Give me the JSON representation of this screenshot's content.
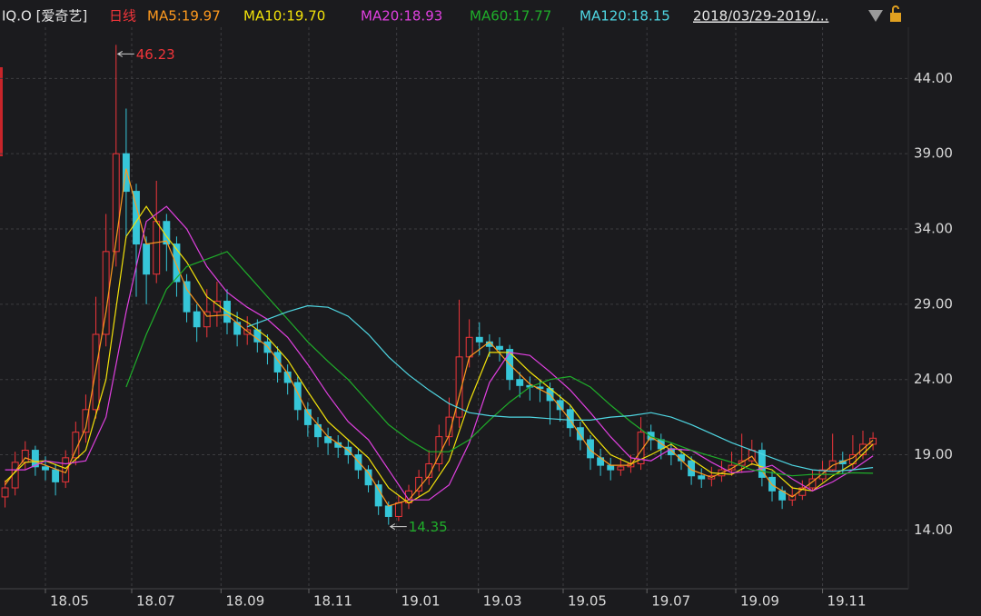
{
  "chart_data": {
    "type": "candlestick",
    "title": "IQ.O [爱奇艺]",
    "period": "日线",
    "date_range": "2018/03/29-2019/...",
    "up_color": "#f0353a",
    "down_color": "#36c6d8",
    "grid": true,
    "xlim": [
      -0.5,
      89.5
    ],
    "ylim": [
      10.1,
      47.4
    ],
    "yticks": [
      {
        "value": 14,
        "label": "14.00"
      },
      {
        "value": 19,
        "label": "19.00"
      },
      {
        "value": 24,
        "label": "24.00"
      },
      {
        "value": 29,
        "label": "29.00"
      },
      {
        "value": 34,
        "label": "34.00"
      },
      {
        "value": 39,
        "label": "39.00"
      },
      {
        "value": 44,
        "label": "44.00"
      }
    ],
    "xticks": [
      {
        "value": 4,
        "label": "18.05"
      },
      {
        "value": 12.55,
        "label": "18.07"
      },
      {
        "value": 21.4,
        "label": "18.09"
      },
      {
        "value": 30.1,
        "label": "18.11"
      },
      {
        "value": 38.8,
        "label": "19.01"
      },
      {
        "value": 46.9,
        "label": "19.03"
      },
      {
        "value": 55.3,
        "label": "19.05"
      },
      {
        "value": 63.6,
        "label": "19.07"
      },
      {
        "value": 72.4,
        "label": "19.09"
      },
      {
        "value": 81,
        "label": "19.11"
      }
    ],
    "open": [
      16.2,
      16.8,
      18.5,
      19.3,
      18.2,
      18.0,
      17.2,
      18.8,
      20.5,
      22.0,
      27.0,
      32.5,
      39.0,
      36.5,
      33.0,
      31.0,
      34.5,
      33.0,
      30.5,
      28.5,
      27.5,
      28.5,
      29.2,
      27.8,
      27.0,
      27.3,
      26.5,
      25.8,
      24.5,
      23.8,
      22.0,
      21.0,
      20.2,
      19.8,
      19.5,
      19.0,
      18.0,
      17.0,
      15.6,
      14.9,
      15.8,
      16.6,
      17.5,
      18.4,
      20.2,
      21.5,
      25.5,
      26.8,
      26.5,
      26.2,
      26.0,
      24.0,
      23.6,
      23.5,
      23.4,
      22.6,
      22.0,
      20.8,
      20.0,
      18.8,
      18.3,
      18.0,
      18.2,
      18.4,
      20.5,
      20.0,
      19.4,
      19.0,
      18.6,
      17.6,
      17.4,
      17.6,
      18.0,
      18.3,
      18.6,
      19.3,
      17.5,
      16.6,
      16.0,
      16.3,
      16.8,
      17.4,
      18.0,
      18.6,
      18.4,
      19.0,
      19.7
    ],
    "high": [
      17.3,
      19.2,
      19.9,
      19.6,
      18.9,
      18.4,
      19.3,
      21.2,
      23.0,
      29.5,
      35.0,
      46.23,
      42.0,
      37.0,
      33.5,
      37.2,
      35.0,
      33.5,
      31.0,
      29.0,
      30.0,
      30.5,
      30.0,
      28.5,
      28.2,
      28.0,
      27.0,
      26.2,
      25.0,
      24.2,
      22.5,
      21.5,
      20.8,
      20.3,
      20.0,
      19.4,
      18.3,
      17.3,
      15.9,
      16.3,
      17.0,
      18.0,
      19.3,
      21.0,
      22.8,
      29.3,
      28.0,
      27.8,
      27.0,
      26.8,
      26.3,
      24.5,
      24.2,
      24.0,
      23.8,
      23.0,
      22.3,
      21.2,
      20.3,
      19.4,
      18.8,
      18.8,
      19.0,
      21.5,
      21.0,
      20.4,
      19.8,
      19.4,
      18.9,
      18.1,
      18.2,
      18.6,
      19.2,
      20.4,
      20.0,
      19.8,
      17.9,
      16.9,
      16.9,
      17.3,
      18.0,
      18.6,
      20.4,
      19.2,
      20.3,
      20.6,
      20.5
    ],
    "low": [
      15.5,
      16.3,
      18.0,
      17.6,
      17.3,
      16.3,
      16.8,
      18.3,
      19.8,
      21.4,
      26.2,
      31.5,
      33.4,
      29.5,
      29.0,
      30.4,
      31.2,
      29.5,
      27.8,
      26.5,
      26.8,
      27.5,
      27.0,
      26.2,
      26.3,
      25.8,
      25.0,
      23.8,
      23.0,
      21.3,
      20.2,
      19.5,
      19.0,
      18.8,
      18.4,
      17.4,
      16.5,
      15.0,
      14.35,
      14.6,
      15.4,
      16.2,
      17.0,
      17.9,
      19.6,
      20.8,
      24.8,
      25.6,
      25.5,
      25.2,
      23.3,
      22.8,
      22.6,
      22.5,
      21.0,
      21.2,
      20.2,
      19.3,
      18.0,
      17.6,
      17.3,
      17.6,
      17.8,
      18.0,
      19.3,
      18.7,
      18.3,
      18.0,
      17.0,
      16.8,
      16.9,
      17.2,
      17.6,
      17.8,
      18.3,
      16.9,
      15.9,
      15.4,
      15.6,
      16.0,
      16.6,
      17.2,
      17.9,
      17.7,
      18.0,
      18.7,
      19.3
    ],
    "close": [
      16.8,
      18.5,
      19.3,
      18.2,
      18.0,
      17.2,
      18.8,
      20.5,
      22.0,
      27.0,
      32.5,
      39.0,
      36.5,
      33.0,
      31.0,
      34.5,
      33.0,
      30.5,
      28.5,
      27.5,
      28.5,
      29.2,
      27.8,
      27.0,
      27.3,
      26.5,
      25.8,
      24.5,
      23.8,
      22.0,
      21.0,
      20.2,
      19.8,
      19.5,
      19.0,
      18.0,
      17.0,
      15.6,
      14.9,
      15.8,
      16.6,
      17.5,
      18.4,
      20.2,
      21.5,
      25.5,
      26.8,
      26.5,
      26.2,
      26.0,
      24.0,
      23.6,
      23.5,
      23.4,
      22.6,
      22.0,
      20.8,
      20.0,
      18.8,
      18.3,
      18.0,
      18.2,
      18.4,
      20.5,
      20.0,
      19.4,
      19.0,
      18.6,
      17.6,
      17.4,
      17.6,
      18.0,
      18.3,
      18.6,
      19.3,
      17.5,
      16.6,
      16.0,
      16.3,
      16.8,
      17.4,
      18.0,
      18.6,
      18.4,
      19.0,
      19.7,
      20.1
    ],
    "series": [
      {
        "label": "MA5:19.97",
        "color": "#ff9a1e",
        "x": [
          0,
          2,
          4,
          6,
          8,
          10,
          12,
          14,
          16,
          18,
          20,
          22,
          24,
          26,
          28,
          30,
          32,
          34,
          36,
          38,
          40,
          42,
          44,
          46,
          48,
          50,
          52,
          54,
          56,
          58,
          60,
          62,
          64,
          66,
          68,
          70,
          72,
          74,
          76,
          78,
          80,
          82,
          84,
          86
        ],
        "values": [
          17.0,
          18.8,
          18.3,
          17.8,
          20.8,
          28.5,
          38.0,
          33.0,
          33.2,
          30.0,
          28.2,
          28.3,
          27.2,
          26.2,
          24.4,
          21.8,
          20.2,
          19.3,
          17.8,
          15.6,
          16.0,
          17.6,
          20.3,
          25.5,
          26.5,
          25.0,
          23.7,
          23.0,
          21.3,
          19.3,
          18.3,
          18.3,
          20.2,
          19.3,
          18.0,
          17.5,
          18.1,
          18.9,
          17.0,
          16.2,
          17.2,
          18.3,
          18.8,
          19.97
        ]
      },
      {
        "label": "MA10:19.70",
        "color": "#f2e20a",
        "x": [
          0,
          2,
          4,
          6,
          8,
          10,
          12,
          14,
          16,
          18,
          20,
          22,
          24,
          26,
          28,
          30,
          32,
          34,
          36,
          38,
          40,
          42,
          44,
          46,
          48,
          50,
          52,
          54,
          56,
          58,
          60,
          62,
          64,
          66,
          68,
          70,
          72,
          74,
          76,
          78,
          80,
          82,
          84,
          86
        ],
        "values": [
          17.2,
          18.5,
          18.6,
          18.1,
          19.3,
          24.0,
          33.5,
          35.5,
          33.5,
          31.8,
          29.5,
          28.5,
          27.8,
          26.8,
          25.3,
          23.2,
          21.2,
          20.0,
          18.8,
          16.8,
          15.8,
          16.6,
          18.6,
          22.5,
          25.8,
          25.8,
          24.5,
          23.4,
          22.3,
          20.5,
          19.0,
          18.4,
          19.0,
          19.7,
          18.7,
          17.8,
          17.7,
          18.4,
          18.0,
          16.8,
          16.6,
          17.6,
          18.4,
          19.7
        ]
      },
      {
        "label": "MA20:18.93",
        "color": "#e040e0",
        "x": [
          0,
          2,
          4,
          6,
          8,
          10,
          12,
          14,
          16,
          18,
          20,
          22,
          24,
          26,
          28,
          30,
          32,
          34,
          36,
          38,
          40,
          42,
          44,
          46,
          48,
          50,
          52,
          54,
          56,
          58,
          60,
          62,
          64,
          66,
          68,
          70,
          72,
          74,
          76,
          78,
          80,
          82,
          84,
          86
        ],
        "values": [
          18.0,
          18.0,
          18.6,
          18.4,
          18.6,
          21.5,
          28.5,
          34.5,
          35.5,
          34.0,
          31.5,
          29.8,
          28.8,
          28.0,
          26.8,
          25.0,
          23.0,
          21.2,
          20.0,
          18.0,
          16.0,
          16.0,
          17.0,
          19.8,
          23.8,
          25.8,
          25.6,
          24.5,
          23.3,
          21.8,
          20.2,
          18.8,
          18.6,
          19.4,
          19.3,
          18.5,
          17.8,
          17.9,
          18.3,
          17.4,
          16.6,
          17.2,
          18.0,
          18.93
        ]
      },
      {
        "label": "MA60:17.77",
        "color": "#1fae2a",
        "x": [
          12,
          14,
          16,
          18,
          20,
          22,
          24,
          26,
          28,
          30,
          32,
          34,
          36,
          38,
          40,
          42,
          44,
          46,
          48,
          50,
          52,
          54,
          56,
          58,
          60,
          62,
          64,
          66,
          68,
          70,
          72,
          74,
          76,
          78,
          80,
          82,
          84,
          86
        ],
        "values": [
          23.5,
          27.0,
          30.0,
          31.5,
          32.0,
          32.5,
          31.0,
          29.5,
          28.0,
          26.5,
          25.2,
          24.0,
          22.5,
          21.0,
          20.0,
          19.2,
          19.2,
          20.0,
          21.3,
          22.5,
          23.5,
          24.0,
          24.2,
          23.5,
          22.3,
          21.2,
          20.2,
          19.8,
          19.3,
          18.9,
          18.5,
          18.0,
          17.8,
          17.6,
          17.7,
          17.7,
          17.8,
          17.77
        ]
      },
      {
        "label": "MA120:18.15",
        "color": "#4fd6e2",
        "x": [
          24,
          26,
          28,
          30,
          32,
          34,
          36,
          38,
          40,
          42,
          44,
          46,
          48,
          50,
          52,
          54,
          56,
          58,
          60,
          62,
          64,
          66,
          68,
          70,
          72,
          74,
          76,
          78,
          80,
          82,
          84,
          86
        ],
        "values": [
          27.5,
          28.0,
          28.5,
          28.9,
          28.8,
          28.2,
          27.0,
          25.5,
          24.3,
          23.3,
          22.4,
          21.8,
          21.6,
          21.5,
          21.5,
          21.4,
          21.3,
          21.3,
          21.5,
          21.6,
          21.8,
          21.5,
          21.0,
          20.4,
          19.8,
          19.3,
          18.8,
          18.3,
          18.0,
          17.9,
          18.0,
          18.15
        ]
      }
    ],
    "annotations": [
      {
        "value": 46.23,
        "x": 11,
        "color": "#f0353a"
      },
      {
        "value": 14.35,
        "x": 38,
        "color": "#1fae2a"
      }
    ]
  }
}
